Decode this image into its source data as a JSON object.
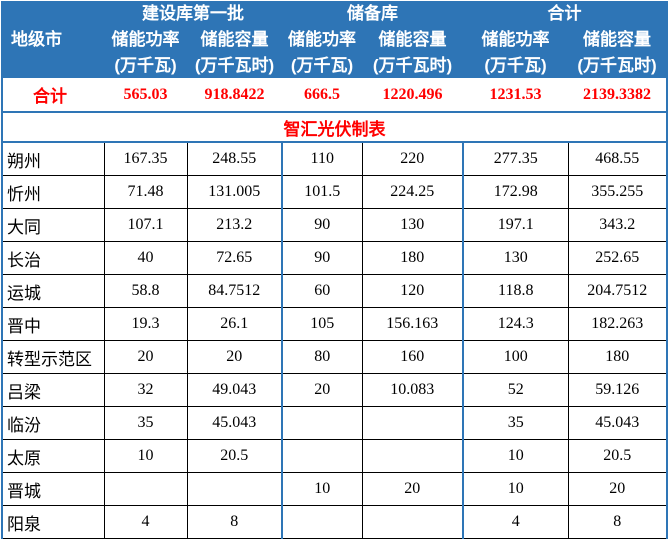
{
  "header": {
    "city_label": "地级市",
    "groups": [
      "建设库第一批",
      "储备库",
      "合计"
    ],
    "col_power": "储能功率",
    "col_capacity": "储能容量",
    "unit_power": "(万千瓦)",
    "unit_capacity": "(万千瓦时)"
  },
  "total": {
    "label": "合计",
    "values": [
      "565.03",
      "918.8422",
      "666.5",
      "1220.496",
      "1231.53",
      "2139.3382"
    ]
  },
  "banner": "智汇光伏制表",
  "rows": [
    {
      "city": "朔州",
      "v": [
        "167.35",
        "248.55",
        "110",
        "220",
        "277.35",
        "468.55"
      ]
    },
    {
      "city": "忻州",
      "v": [
        "71.48",
        "131.005",
        "101.5",
        "224.25",
        "172.98",
        "355.255"
      ]
    },
    {
      "city": "大同",
      "v": [
        "107.1",
        "213.2",
        "90",
        "130",
        "197.1",
        "343.2"
      ]
    },
    {
      "city": "长治",
      "v": [
        "40",
        "72.65",
        "90",
        "180",
        "130",
        "252.65"
      ]
    },
    {
      "city": "运城",
      "v": [
        "58.8",
        "84.7512",
        "60",
        "120",
        "118.8",
        "204.7512"
      ]
    },
    {
      "city": "晋中",
      "v": [
        "19.3",
        "26.1",
        "105",
        "156.163",
        "124.3",
        "182.263"
      ]
    },
    {
      "city": "转型示范区",
      "v": [
        "20",
        "20",
        "80",
        "160",
        "100",
        "180"
      ]
    },
    {
      "city": "吕梁",
      "v": [
        "32",
        "49.043",
        "20",
        "10.083",
        "52",
        "59.126"
      ]
    },
    {
      "city": "临汾",
      "v": [
        "35",
        "45.043",
        "",
        "",
        "35",
        "45.043"
      ]
    },
    {
      "city": "太原",
      "v": [
        "10",
        "20.5",
        "",
        "",
        "10",
        "20.5"
      ]
    },
    {
      "city": "晋城",
      "v": [
        "",
        "",
        "10",
        "20",
        "10",
        "20"
      ]
    },
    {
      "city": "阳泉",
      "v": [
        "4",
        "8",
        "",
        "",
        "4",
        "8"
      ]
    }
  ]
}
